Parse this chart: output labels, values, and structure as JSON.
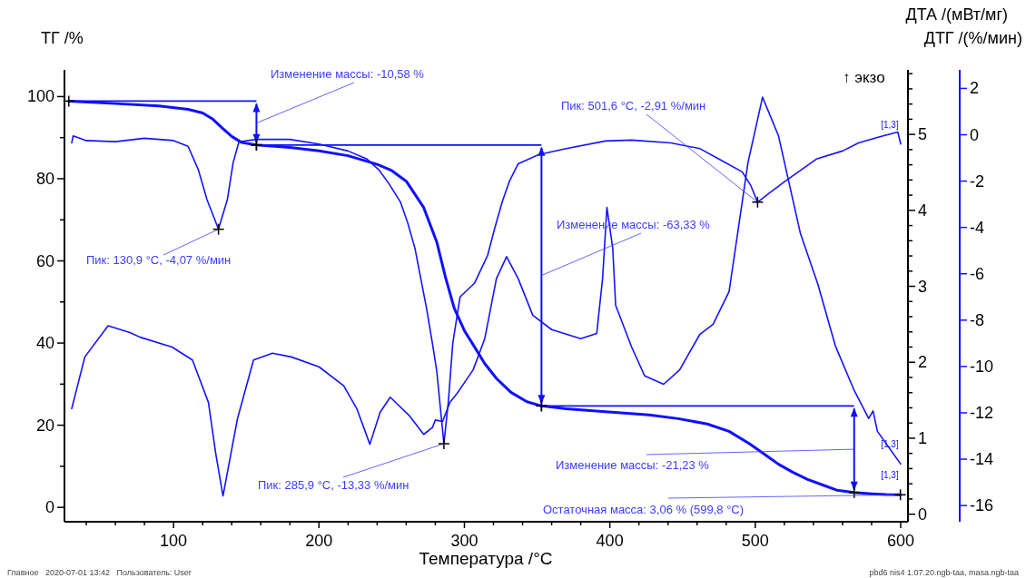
{
  "chart_data": {
    "type": "line",
    "xlabel": "Температура /°C",
    "ylabel": "ТГ /%",
    "y2label": "ДТА /(мВт/мг)",
    "y3label": "ДТГ /(%/мин)",
    "legend": false,
    "xlim": [
      25,
      605
    ],
    "ylim": [
      -3.5,
      106.5
    ],
    "y2lim": [
      -0.1,
      5.85
    ],
    "y3lim": [
      -16.7,
      2.8
    ],
    "xticks": [
      {
        "value": 40,
        "label": null
      },
      {
        "value": 60,
        "label": null
      },
      {
        "value": 80,
        "label": null
      },
      100,
      {
        "value": 120,
        "label": null
      },
      {
        "value": 140,
        "label": null
      },
      {
        "value": 160,
        "label": null
      },
      {
        "value": 180,
        "label": null
      },
      200,
      {
        "value": 220,
        "label": null
      },
      {
        "value": 240,
        "label": null
      },
      {
        "value": 260,
        "label": null
      },
      {
        "value": 280,
        "label": null
      },
      300,
      {
        "value": 320,
        "label": null
      },
      {
        "value": 340,
        "label": null
      },
      {
        "value": 360,
        "label": null
      },
      {
        "value": 380,
        "label": null
      },
      400,
      {
        "value": 420,
        "label": null
      },
      {
        "value": 440,
        "label": null
      },
      {
        "value": 460,
        "label": null
      },
      {
        "value": 480,
        "label": null
      },
      500,
      {
        "value": 520,
        "label": null
      },
      {
        "value": 540,
        "label": null
      },
      {
        "value": 560,
        "label": null
      },
      {
        "value": 580,
        "label": null
      },
      600
    ],
    "yticks": [
      0,
      {
        "value": 10,
        "label": null
      },
      20,
      {
        "value": 30,
        "label": null
      },
      40,
      {
        "value": 50,
        "label": null
      },
      60,
      {
        "value": 70,
        "label": null
      },
      80,
      {
        "value": 90,
        "label": null
      },
      100
    ],
    "y2ticks": [
      0,
      {
        "value": 0.2,
        "label": null
      },
      {
        "value": 0.4,
        "label": null
      },
      {
        "value": 0.6,
        "label": null
      },
      {
        "value": 0.8,
        "label": null
      },
      1,
      {
        "value": 1.2,
        "label": null
      },
      {
        "value": 1.4,
        "label": null
      },
      {
        "value": 1.6,
        "label": null
      },
      {
        "value": 1.8,
        "label": null
      },
      2,
      {
        "value": 2.2,
        "label": null
      },
      {
        "value": 2.4,
        "label": null
      },
      {
        "value": 2.6,
        "label": null
      },
      {
        "value": 2.8,
        "label": null
      },
      3,
      {
        "value": 3.2,
        "label": null
      },
      {
        "value": 3.4,
        "label": null
      },
      {
        "value": 3.6,
        "label": null
      },
      {
        "value": 3.8,
        "label": null
      },
      4,
      {
        "value": 4.2,
        "label": null
      },
      {
        "value": 4.4,
        "label": null
      },
      {
        "value": 4.6,
        "label": null
      },
      {
        "value": 4.8,
        "label": null
      },
      5,
      {
        "value": 5.2,
        "label": null
      },
      {
        "value": 5.4,
        "label": null
      },
      {
        "value": 5.6,
        "label": null
      },
      {
        "value": 5.8,
        "label": null
      }
    ],
    "y3ticks": [
      -16,
      -14,
      -12,
      -10,
      -8,
      -6,
      -4,
      -2,
      0,
      2
    ],
    "series": [
      {
        "name": "[1,3]",
        "color": "#1010ff",
        "x": [
          28,
          60,
          90,
          110,
          120,
          127,
          133,
          140,
          147,
          157,
          180,
          200,
          220,
          240,
          250,
          260,
          272,
          281,
          287,
          293,
          300,
          306,
          314,
          322,
          332,
          343,
          353,
          370,
          397,
          427,
          447,
          467,
          482,
          496,
          506,
          516,
          526,
          536,
          546,
          556,
          568,
          580,
          590,
          600
        ],
        "values": [
          98.9,
          98.3,
          97.7,
          96.9,
          96,
          94.5,
          92.5,
          90.3,
          88.8,
          88.2,
          87.6,
          86.8,
          85.6,
          83.5,
          82,
          79.4,
          73,
          64.6,
          56,
          48.5,
          43,
          39.6,
          35,
          31.4,
          28,
          25.7,
          24.7,
          24,
          23.3,
          22.5,
          21.6,
          20.3,
          18.5,
          15.5,
          13,
          10.5,
          8.5,
          6.8,
          5.5,
          4.2,
          3.6,
          3.3,
          3.1,
          3.06
        ]
      },
      {
        "name": "[1,3]",
        "color": "#1414ff",
        "axis": "y3",
        "x": [
          30,
          31,
          40,
          60,
          80,
          100,
          110,
          117,
          123,
          130.9,
          137,
          141,
          145,
          157,
          180,
          200,
          220,
          233,
          241,
          248,
          256,
          261,
          266,
          270,
          274,
          278,
          281,
          283.5,
          285.9,
          289,
          292,
          297,
          307,
          316,
          321,
          326,
          331,
          337,
          351,
          370,
          397,
          415,
          442,
          462,
          475,
          491,
          497,
          501.6,
          510,
          520,
          542,
          560,
          571,
          585,
          598,
          600
        ],
        "values": [
          -0.35,
          -0.05,
          -0.25,
          -0.3,
          -0.15,
          -0.25,
          -0.5,
          -1.5,
          -2.8,
          -4.07,
          -2.8,
          -1.2,
          -0.3,
          -0.2,
          -0.2,
          -0.4,
          -0.7,
          -1.05,
          -1.5,
          -2.1,
          -2.9,
          -3.8,
          -4.9,
          -6.2,
          -7.5,
          -9,
          -10.2,
          -11.8,
          -13.33,
          -11.5,
          -9,
          -7,
          -6.4,
          -5.2,
          -4,
          -2.9,
          -2,
          -1.25,
          -0.86,
          -0.6,
          -0.27,
          -0.23,
          -0.35,
          -0.6,
          -1.05,
          -1.6,
          -2.2,
          -2.91,
          -2.5,
          -2.03,
          -1.05,
          -0.7,
          -0.35,
          -0.1,
          0.12,
          -0.4
        ]
      },
      {
        "name": "[1,3]",
        "color": "#1414ff",
        "axis": "y2",
        "x": [
          30,
          39,
          55,
          70,
          77,
          99,
          113,
          124,
          129,
          134,
          139,
          144,
          155,
          168,
          181,
          200,
          217,
          226,
          235,
          242,
          249,
          262,
          272,
          278,
          280,
          285,
          290,
          295,
          306,
          314,
          322,
          329,
          337,
          347,
          360,
          380,
          391,
          395,
          398,
          402,
          404,
          415,
          424,
          437,
          448,
          462,
          471,
          482,
          495,
          505,
          516,
          531,
          543,
          555,
          568,
          578,
          581,
          584,
          600
        ],
        "values": [
          1.39,
          2.07,
          2.48,
          2.39,
          2.33,
          2.2,
          2.03,
          1.47,
          0.8,
          0.24,
          0.75,
          1.26,
          2.03,
          2.12,
          2.07,
          1.94,
          1.69,
          1.39,
          0.92,
          1.34,
          1.54,
          1.3,
          1.05,
          1.14,
          1.24,
          1.22,
          1.47,
          1.59,
          1.9,
          2.31,
          3.1,
          3.39,
          3.1,
          2.62,
          2.43,
          2.31,
          2.38,
          3.1,
          4.04,
          3.5,
          2.75,
          2.2,
          1.82,
          1.71,
          1.9,
          2.37,
          2.5,
          2.93,
          4.63,
          5.49,
          4.98,
          3.7,
          3.03,
          2.22,
          1.63,
          1.26,
          1.36,
          1.09,
          0.66
        ]
      }
    ],
    "annotations": [
      "↑ экзо",
      "Изменение массы: -10,58 %",
      {
        "text": "Пик: 130,9 °C, -4,07 %/мин",
        "x": 130.9,
        "y": 67.7
      },
      "Изменение массы: -63,33 %",
      {
        "text": "Пик: 501,6 °C, -2,91 %/мин",
        "x": 501.6,
        "y": 74.3
      },
      {
        "text": "Пик: 285,9 °C, -13,33 %/мин",
        "x": 285.9,
        "y": 15.5
      },
      "Изменение массы: -21,23 %",
      {
        "text": "Остаточная масса: 3,06 % (599,8 °C)",
        "x": 599.8,
        "y": 3.06
      },
      "Главное   2020-07-01 13:42   Пользователь: User",
      "pbd6 nis4 1.07.20.ngb-taa, masa.ngb-taa"
    ]
  }
}
